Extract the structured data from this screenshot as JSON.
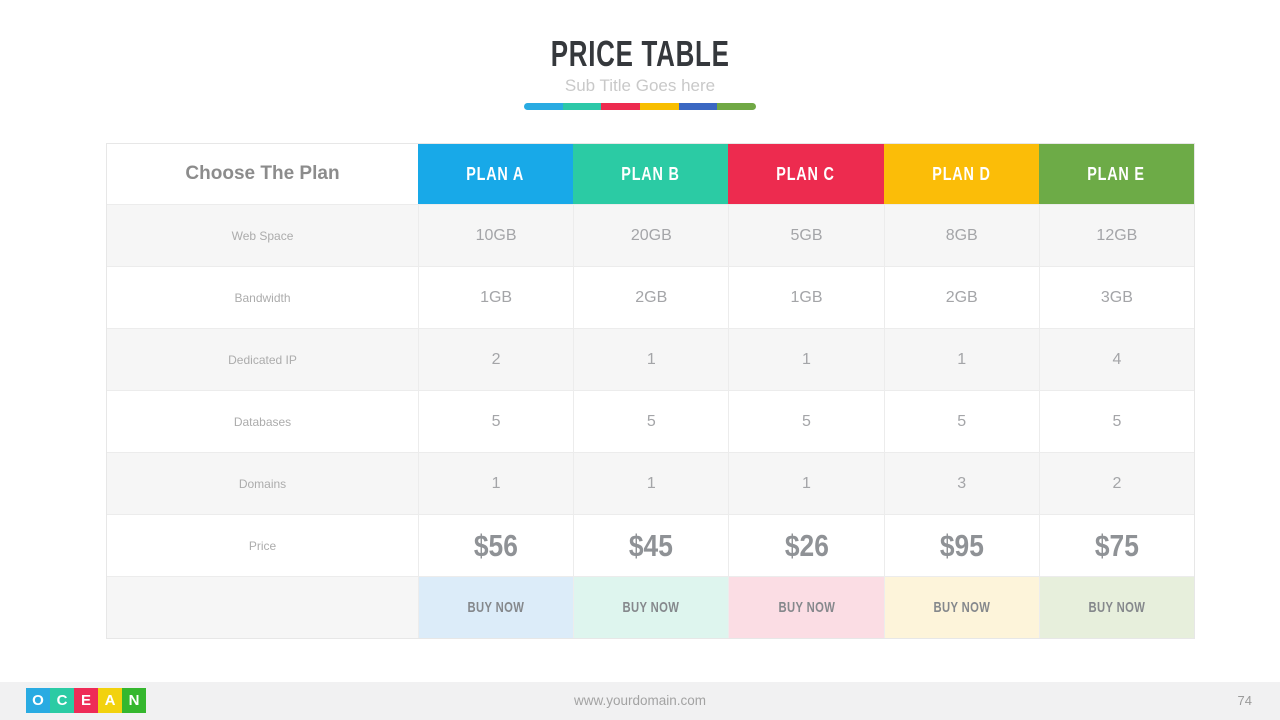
{
  "slide": {
    "title": "PRICE TABLE",
    "subtitle": "Sub Title Goes here",
    "accent_bar_colors": [
      "#29abe2",
      "#2cc8a8",
      "#ed2b4f",
      "#f8be00",
      "#3a67c2",
      "#70a845"
    ]
  },
  "table": {
    "corner_label": "Choose The Plan",
    "plans": [
      {
        "id": "plan-a",
        "label": "PLAN A",
        "color": "#18a9e8",
        "tint": "#dcecf9",
        "buy_label": "BUY NOW"
      },
      {
        "id": "plan-b",
        "label": "PLAN B",
        "color": "#2bcba4",
        "tint": "#def5ee",
        "buy_label": "BUY NOW"
      },
      {
        "id": "plan-c",
        "label": "PLAN C",
        "color": "#ed2b4f",
        "tint": "#fbdde4",
        "buy_label": "BUY NOW"
      },
      {
        "id": "plan-d",
        "label": "PLAN D",
        "color": "#fbbd08",
        "tint": "#fdf4da",
        "buy_label": "BUY NOW"
      },
      {
        "id": "plan-e",
        "label": "PLAN E",
        "color": "#6dab47",
        "tint": "#e7efdc",
        "buy_label": "BUY NOW"
      }
    ],
    "features": [
      {
        "label": "Web Space",
        "values": [
          "10GB",
          "20GB",
          "5GB",
          "8GB",
          "12GB"
        ]
      },
      {
        "label": "Bandwidth",
        "values": [
          "1GB",
          "2GB",
          "1GB",
          "2GB",
          "3GB"
        ]
      },
      {
        "label": "Dedicated IP",
        "values": [
          "2",
          "1",
          "1",
          "1",
          "4"
        ]
      },
      {
        "label": "Databases",
        "values": [
          "5",
          "5",
          "5",
          "5",
          "5"
        ]
      },
      {
        "label": "Domains",
        "values": [
          "1",
          "1",
          "1",
          "3",
          "2"
        ]
      },
      {
        "label": "Price",
        "values": [
          "$56",
          "$45",
          "$26",
          "$95",
          "$75"
        ],
        "emphasis": true
      }
    ]
  },
  "footer": {
    "logo_letters": [
      {
        "char": "O",
        "color": "#29abe2"
      },
      {
        "char": "C",
        "color": "#2bcba4"
      },
      {
        "char": "E",
        "color": "#ee2b57"
      },
      {
        "char": "A",
        "color": "#f2d20e"
      },
      {
        "char": "N",
        "color": "#35b72e"
      }
    ],
    "url": "www.yourdomain.com",
    "page_number": "74"
  }
}
